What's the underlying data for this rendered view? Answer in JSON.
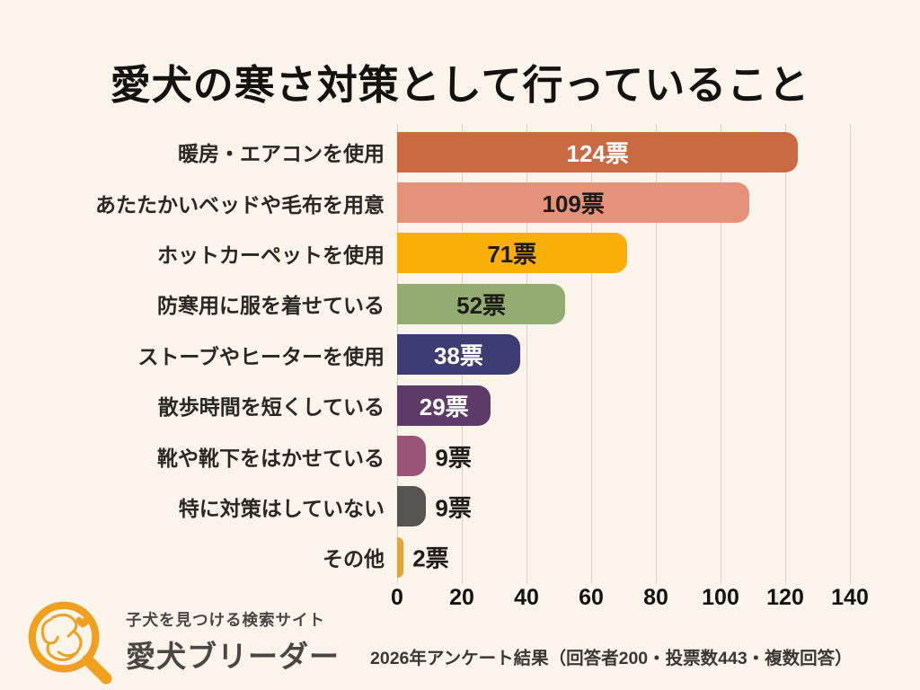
{
  "chart_data": {
    "type": "bar",
    "orientation": "horizontal",
    "title": "愛犬の寒さ対策として行っていること",
    "categories": [
      "暖房・エアコンを使用",
      "あたたかいベッドや毛布を用意",
      "ホットカーペットを使用",
      "防寒用に服を着せている",
      "ストーブやヒーターを使用",
      "散歩時間を短くしている",
      "靴や靴下をはかせている",
      "特に対策はしていない",
      "その他"
    ],
    "values": [
      124,
      109,
      71,
      52,
      38,
      29,
      9,
      9,
      2
    ],
    "unit": "票",
    "value_labels": [
      "124票",
      "109票",
      "71票",
      "52票",
      "38票",
      "29票",
      "9票",
      "9票",
      "2票"
    ],
    "bar_colors": [
      "#C96A43",
      "#E6917A",
      "#F9AF08",
      "#93AC72",
      "#3C3C72",
      "#5D3A68",
      "#9A5476",
      "#575350",
      "#E3A33C"
    ],
    "label_inside": [
      true,
      true,
      true,
      true,
      true,
      true,
      false,
      false,
      false
    ],
    "label_text_colors": [
      "#FFFFFF",
      "#1E1B18",
      "#1E1B18",
      "#1E1B18",
      "#FFFFFF",
      "#FFFFFF",
      "#1E1B18",
      "#1E1B18",
      "#1E1B18"
    ],
    "x_ticks": [
      0,
      20,
      40,
      60,
      80,
      100,
      120,
      140
    ],
    "x_tick_labels": [
      "0",
      "20",
      "40",
      "60",
      "80",
      "100",
      "120",
      "140"
    ],
    "xlim": [
      0,
      140
    ],
    "grid": true,
    "legend": "none",
    "source_note": "2026年アンケート結果（回答者200・投票数443・複数回答）"
  },
  "footer": {
    "tagline": "子犬を見つける検索サイト",
    "brand": "愛犬ブリーダー",
    "logo_icon": "dog-in-magnifier-icon",
    "logo_color": "#EFA01F"
  }
}
